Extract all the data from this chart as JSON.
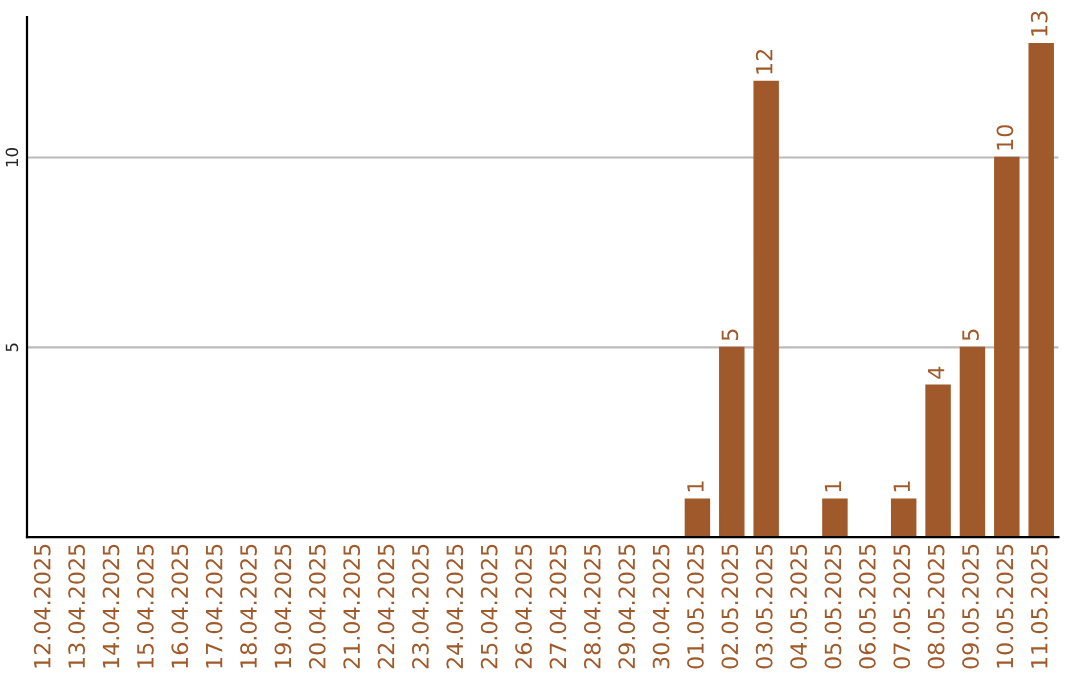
{
  "chart_data": {
    "type": "bar",
    "categories": [
      "12.04.2025",
      "13.04.2025",
      "14.04.2025",
      "15.04.2025",
      "16.04.2025",
      "17.04.2025",
      "18.04.2025",
      "19.04.2025",
      "20.04.2025",
      "21.04.2025",
      "22.04.2025",
      "23.04.2025",
      "24.04.2025",
      "25.04.2025",
      "26.04.2025",
      "27.04.2025",
      "28.04.2025",
      "29.04.2025",
      "30.04.2025",
      "01.05.2025",
      "02.05.2025",
      "03.05.2025",
      "04.05.2025",
      "05.05.2025",
      "06.05.2025",
      "07.05.2025",
      "08.05.2025",
      "09.05.2025",
      "10.05.2025",
      "11.05.2025"
    ],
    "values": [
      0,
      0,
      0,
      0,
      0,
      0,
      0,
      0,
      0,
      0,
      0,
      0,
      0,
      0,
      0,
      0,
      0,
      0,
      0,
      1,
      5,
      12,
      0,
      1,
      0,
      1,
      4,
      5,
      10,
      13
    ],
    "value_labels": [
      null,
      null,
      null,
      null,
      null,
      null,
      null,
      null,
      null,
      null,
      null,
      null,
      null,
      null,
      null,
      null,
      null,
      null,
      null,
      "1",
      "5",
      "12",
      null,
      "1",
      null,
      "1",
      "4",
      "5",
      "10",
      "13"
    ],
    "color": "#a0592a",
    "ylim": [
      0,
      13.7
    ],
    "yticks": [
      5,
      10
    ],
    "grid": "y"
  }
}
